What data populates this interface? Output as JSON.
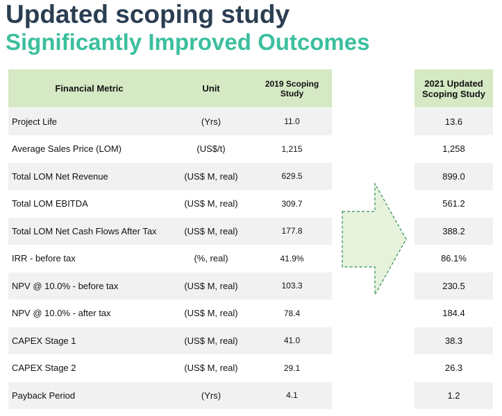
{
  "header": {
    "title": "Updated scoping study",
    "subtitle": "Significantly Improved Outcomes"
  },
  "table": {
    "columns": [
      "Financial Metric",
      "Unit",
      "2019 Scoping Study",
      "2021 Updated Scoping Study"
    ],
    "rows": [
      [
        "Project Life",
        "(Yrs)",
        "11.0",
        "13.6"
      ],
      [
        "Average Sales Price (LOM)",
        "(US$/t)",
        "1,215",
        "1,258"
      ],
      [
        "Total LOM Net Revenue",
        "(US$ M, real)",
        "629.5",
        "899.0"
      ],
      [
        "Total LOM EBITDA",
        "(US$ M, real)",
        "309.7",
        "561.2"
      ],
      [
        "Total LOM Net Cash Flows After Tax",
        "(US$ M, real)",
        "177.8",
        "388.2"
      ],
      [
        "IRR - before tax",
        "(%, real)",
        "41.9%",
        "86.1%"
      ],
      [
        "NPV @ 10.0% - before tax",
        "(US$ M, real)",
        "103.3",
        "230.5"
      ],
      [
        "NPV @ 10.0% - after tax",
        "(US$ M, real)",
        "78.4",
        "184.4"
      ],
      [
        "CAPEX Stage 1",
        "(US$ M, real)",
        "41.0",
        "38.3"
      ],
      [
        "CAPEX Stage 2",
        "(US$ M, real)",
        "29.1",
        "26.3"
      ],
      [
        "Payback Period",
        "(Yrs)",
        "4.1",
        "1.2"
      ]
    ]
  }
}
